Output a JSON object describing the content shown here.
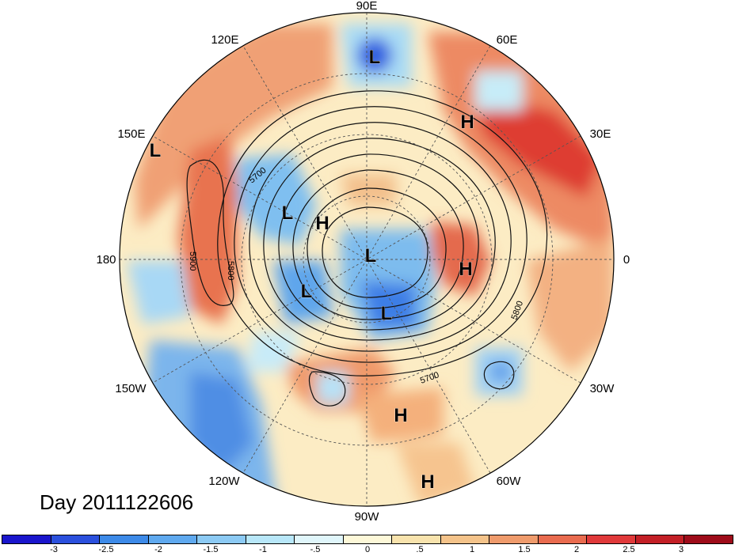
{
  "map": {
    "longitude_labels": {
      "lon_90e": "90E",
      "lon_60e": "60E",
      "lon_30e": "30E",
      "lon_0": "0",
      "lon_30w": "30W",
      "lon_60w": "60W",
      "lon_90w": "90W",
      "lon_120w": "120W",
      "lon_150w": "150W",
      "lon_180": "180",
      "lon_150e": "150E",
      "lon_120e": "120E"
    },
    "contour_labels": {
      "c5700_a": "5700",
      "c5700_b": "5700",
      "c5800_a": "5800",
      "c5800_b": "5800",
      "c5900": "5900"
    },
    "pressure_centers": [
      {
        "mark": "L"
      },
      {
        "mark": "H"
      },
      {
        "mark": "L"
      },
      {
        "mark": "L"
      },
      {
        "mark": "H"
      },
      {
        "mark": "L"
      },
      {
        "mark": "H"
      },
      {
        "mark": "L"
      },
      {
        "mark": "L"
      },
      {
        "mark": "H"
      },
      {
        "mark": "H"
      }
    ],
    "colors": {
      "strong_negative": "#1f26c9",
      "moderate_negative": "#4b8fe3",
      "weak_negative": "#a8d8f7",
      "near_zero": "#fdf6d5",
      "weak_positive": "#f7cf95",
      "moderate_positive": "#ee8f68",
      "strong_positive": "#da2f2f"
    }
  },
  "title": {
    "day_label": "Day 2011122606"
  },
  "colorbar": {
    "colors": [
      "#1a15cc",
      "#2b50dd",
      "#3d8ae8",
      "#5fa9ef",
      "#8ccaf4",
      "#b8e7f9",
      "#e0f6fb",
      "#fdf8d8",
      "#f8e3ad",
      "#f4c38a",
      "#ef9b6c",
      "#e96b4f",
      "#e0393a",
      "#c31f26",
      "#9e0c1a"
    ],
    "tick_labels": [
      "-3",
      "-2.5",
      "-2",
      "-1.5",
      "-1",
      "-.5",
      "0",
      ".5",
      "1",
      "1.5",
      "2",
      "2.5",
      "3"
    ]
  }
}
